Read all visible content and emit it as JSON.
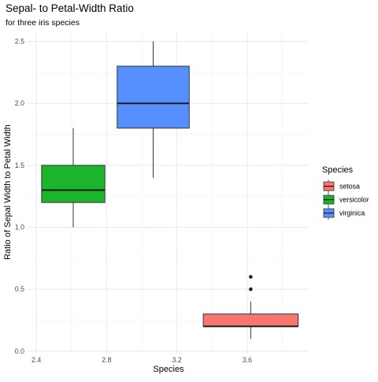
{
  "chart_data": {
    "type": "box",
    "title": "Sepal- to Petal-Width Ratio",
    "subtitle": "for three iris species",
    "xlabel": "Species",
    "ylabel": "Ratio of Sepal Width to Petal Width",
    "xlim": [
      2.35,
      3.95
    ],
    "ylim": [
      -0.02,
      2.58
    ],
    "x_ticks": [
      2.4,
      2.8,
      3.2,
      3.6
    ],
    "x_tick_labels": [
      "2.4",
      "2.8",
      "3.2",
      "3.6"
    ],
    "y_ticks": [
      0.0,
      0.5,
      1.0,
      1.5,
      2.0,
      2.5
    ],
    "y_tick_labels": [
      "0.0",
      "0.5",
      "1.0",
      "1.5",
      "2.0",
      "2.5"
    ],
    "grid": true,
    "legend": {
      "title": "Species",
      "position": "right"
    },
    "series": [
      {
        "name": "setosa",
        "color": "#F8766D",
        "x_range": [
          3.35,
          3.89
        ],
        "min": 0.1,
        "q1": 0.2,
        "median": 0.2,
        "q3": 0.3,
        "max": 0.4,
        "outliers": [
          0.5,
          0.6
        ]
      },
      {
        "name": "versicolor",
        "color": "#1BB42A",
        "x_range": [
          2.43,
          2.79
        ],
        "min": 1.0,
        "q1": 1.2,
        "median": 1.3,
        "q3": 1.5,
        "max": 1.8,
        "outliers": []
      },
      {
        "name": "virginica",
        "color": "#5690FF",
        "x_range": [
          2.86,
          3.27
        ],
        "min": 1.4,
        "q1": 1.8,
        "median": 2.0,
        "q3": 2.3,
        "max": 2.5,
        "outliers": []
      }
    ]
  }
}
